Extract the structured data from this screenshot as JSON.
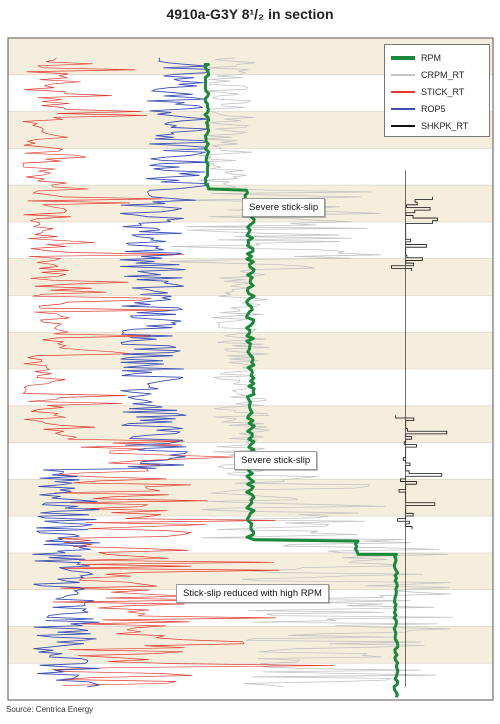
{
  "title": "4910a-G3Y 8¹/₂ in section",
  "source": "Source: Centrica Energy",
  "colors": {
    "band": "#f5eedd",
    "RPM": "#1a8a3a",
    "CRPM_RT": "#c4c4c4",
    "STICK_RT": "#e03a2f",
    "ROP5": "#3b4fb5",
    "SHKPK_RT": "#111111"
  },
  "legend": [
    {
      "name": "RPM",
      "color": "#1a8a3a",
      "weight": 4
    },
    {
      "name": "CRPM_RT",
      "color": "#c4c4c4",
      "weight": 2
    },
    {
      "name": "STICK_RT",
      "color": "#e03a2f",
      "weight": 2
    },
    {
      "name": "ROP5",
      "color": "#3b4fb5",
      "weight": 2
    },
    {
      "name": "SHKPK_RT",
      "color": "#111111",
      "weight": 2
    }
  ],
  "annotations": [
    {
      "id": "ann1",
      "text": "Severe stick-slip"
    },
    {
      "id": "ann2",
      "text": "Severe stick-slip"
    },
    {
      "id": "ann3",
      "text": "Stick-slip reduced with high RPM"
    }
  ],
  "chart_data": {
    "type": "line",
    "title": "4910a-G3Y 8¹/₂ in section",
    "orientation": "vertical-depth",
    "grid": true,
    "legend_position": "top-right",
    "depth_rows": 18,
    "series": [
      {
        "name": "RPM",
        "segments": [
          {
            "from": 0.0,
            "to": 0.23,
            "level": 0.41
          },
          {
            "from": 0.23,
            "to": 0.25,
            "level": 0.49
          },
          {
            "from": 0.25,
            "to": 0.76,
            "level": 0.5
          },
          {
            "from": 0.76,
            "to": 0.78,
            "level": 0.72
          },
          {
            "from": 0.78,
            "to": 1.0,
            "level": 0.8
          }
        ]
      },
      {
        "name": "CRPM_RT",
        "profile": [
          {
            "from": 0.0,
            "to": 0.23,
            "level": 0.45
          },
          {
            "from": 0.23,
            "to": 0.35,
            "level": 0.55
          },
          {
            "from": 0.35,
            "to": 0.67,
            "level": 0.48
          },
          {
            "from": 0.67,
            "to": 0.76,
            "level": 0.6
          },
          {
            "from": 0.76,
            "to": 1.0,
            "level": 0.7
          }
        ]
      },
      {
        "name": "STICK_RT",
        "profile": [
          {
            "from": 0.0,
            "to": 0.6,
            "level": 0.1
          },
          {
            "from": 0.6,
            "to": 1.0,
            "level": 0.3
          }
        ]
      },
      {
        "name": "ROP5",
        "profile": [
          {
            "from": 0.0,
            "to": 0.25,
            "level": 0.35
          },
          {
            "from": 0.25,
            "to": 0.65,
            "level": 0.3
          },
          {
            "from": 0.65,
            "to": 1.0,
            "level": 0.12
          }
        ]
      },
      {
        "name": "SHKPK_RT",
        "profile": [
          {
            "from": 0.24,
            "to": 0.35,
            "level": 0.85
          },
          {
            "from": 0.57,
            "to": 0.74,
            "level": 0.85
          }
        ]
      }
    ]
  }
}
